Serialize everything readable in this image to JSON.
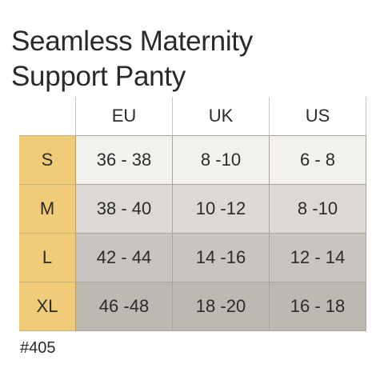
{
  "title": {
    "line1": "Seamless Maternity",
    "line2": "Support Panty"
  },
  "table": {
    "columns": [
      "EU",
      "UK",
      "US"
    ],
    "rows": [
      {
        "size": "S",
        "values": [
          "36 - 38",
          "8 -10",
          "6 - 8"
        ]
      },
      {
        "size": "M",
        "values": [
          "38 - 40",
          "10 -12",
          "8 -10"
        ]
      },
      {
        "size": "L",
        "values": [
          "42 - 44",
          "14 -16",
          "12 - 14"
        ]
      },
      {
        "size": "XL",
        "values": [
          "46 -48",
          "18 -20",
          "16 - 18"
        ]
      }
    ]
  },
  "footnote": "#405",
  "colors": {
    "size_column": "#f1cc78",
    "row_shades": [
      "#f3f1ee",
      "#dcd9d4",
      "#c8c4bf",
      "#bdb8b2"
    ]
  }
}
